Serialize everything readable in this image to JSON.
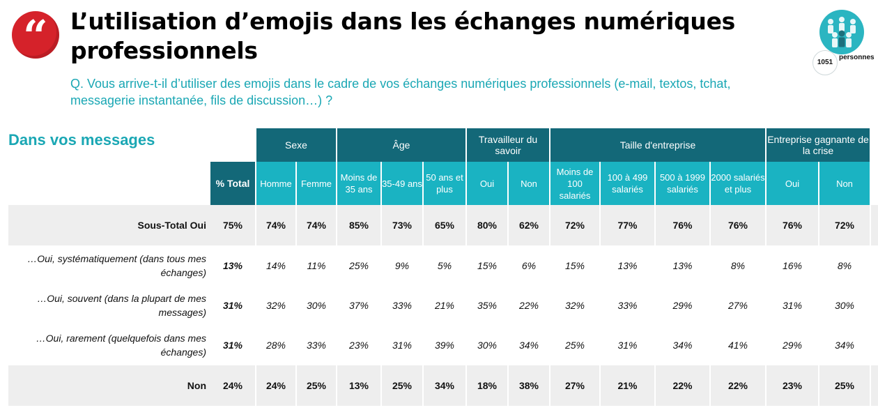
{
  "header": {
    "title": "L’utilisation d’emojis dans les échanges numériques professionnels",
    "question": "Q. Vous arrive-t-il d’utiliser des emojis dans le cadre de vos échanges numériques professionnels (e-mail, textos, tchat, messagerie instantanée, fils de discussion…) ?",
    "quote_glyph": "“",
    "sample_count": "1051",
    "sample_label": "personnes",
    "icons": [
      "quote-icon",
      "people-group-icon"
    ]
  },
  "chart_data": {
    "type": "table",
    "title": "Dans vos messages",
    "total_label": "% Total",
    "groups": [
      {
        "label": "Sexe",
        "columns": [
          "Homme",
          "Femme"
        ]
      },
      {
        "label": "Âge",
        "columns": [
          "Moins de 35 ans",
          "35-49 ans",
          "50 ans et plus"
        ]
      },
      {
        "label": "Travailleur du savoir",
        "columns": [
          "Oui",
          "Non"
        ]
      },
      {
        "label": "Taille d'entreprise",
        "columns": [
          "Moins de 100 salariés",
          "100 à 499 salariés",
          "500 à 1999 salariés",
          "2000 salariés et plus"
        ]
      },
      {
        "label": "Entreprise gagnante de la crise",
        "columns": [
          "Oui",
          "Non"
        ]
      }
    ],
    "rows": [
      {
        "label": "Sous-Total Oui",
        "style": "bold",
        "values": [
          "75%",
          "74%",
          "74%",
          "85%",
          "73%",
          "65%",
          "80%",
          "62%",
          "72%",
          "77%",
          "76%",
          "76%",
          "76%",
          "72%"
        ]
      },
      {
        "label": "…Oui, systématiquement (dans tous mes échanges)",
        "style": "italic",
        "values": [
          "13%",
          "14%",
          "11%",
          "25%",
          "9%",
          "5%",
          "15%",
          "6%",
          "15%",
          "13%",
          "13%",
          "8%",
          "16%",
          "8%"
        ]
      },
      {
        "label": "…Oui, souvent (dans la plupart de mes messages)",
        "style": "italic",
        "values": [
          "31%",
          "32%",
          "30%",
          "37%",
          "33%",
          "21%",
          "35%",
          "22%",
          "32%",
          "33%",
          "29%",
          "27%",
          "31%",
          "30%"
        ]
      },
      {
        "label": "…Oui, rarement (quelquefois dans mes échanges)",
        "style": "italic",
        "values": [
          "31%",
          "28%",
          "33%",
          "23%",
          "31%",
          "39%",
          "30%",
          "34%",
          "25%",
          "31%",
          "34%",
          "41%",
          "29%",
          "34%"
        ]
      },
      {
        "label": "Non",
        "style": "bold",
        "values": [
          "24%",
          "24%",
          "25%",
          "13%",
          "25%",
          "34%",
          "18%",
          "38%",
          "27%",
          "21%",
          "22%",
          "22%",
          "23%",
          "25%"
        ]
      }
    ],
    "colors": {
      "header_dark": "#136878",
      "header_light": "#1ab3c2",
      "accent_text": "#1aa7b4",
      "band": "#eeeeee",
      "quote_red": "#d5222a"
    }
  }
}
